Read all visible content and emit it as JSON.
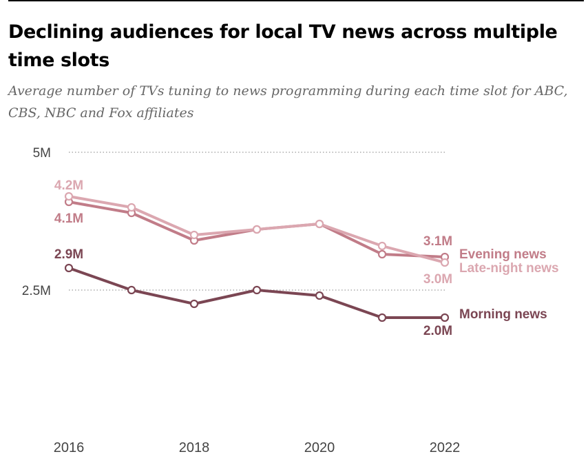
{
  "title": "Declining audiences for local TV news across multiple time slots",
  "subtitle": "Average number of TVs tuning to news programming during each time slot for ABC, CBS, NBC and Fox affiliates",
  "colors": {
    "evening": "#c17c88",
    "late_night": "#dba7b0",
    "morning": "#7b4653",
    "grid": "#999999",
    "axis_text": "#444444"
  },
  "chart_data": {
    "type": "line",
    "title": "Declining audiences for local TV news across multiple time slots",
    "subtitle": "Average number of TVs tuning to news programming during each time slot for ABC, CBS, NBC and Fox affiliates",
    "x": [
      2016,
      2017,
      2018,
      2019,
      2020,
      2021,
      2022
    ],
    "xticks": [
      "2016",
      "2018",
      "2020",
      "2022"
    ],
    "ylim": [
      0,
      5
    ],
    "yticks": [
      {
        "value": 5.0,
        "label": "5M"
      },
      {
        "value": 2.5,
        "label": "2.5M"
      }
    ],
    "grid": "dotted horizontal at labeled ticks",
    "series": [
      {
        "key": "evening",
        "name": "Evening news",
        "values": [
          4.1,
          3.9,
          3.4,
          3.6,
          3.7,
          3.15,
          3.1
        ],
        "start_label": "4.1M",
        "end_label": "3.1M"
      },
      {
        "key": "late_night",
        "name": "Late-night news",
        "values": [
          4.2,
          4.0,
          3.5,
          3.6,
          3.7,
          3.3,
          3.0
        ],
        "start_label": "4.2M",
        "end_label": "3.0M"
      },
      {
        "key": "morning",
        "name": "Morning news",
        "values": [
          2.9,
          2.5,
          2.25,
          2.5,
          2.4,
          2.0,
          2.0
        ],
        "start_label": "2.9M",
        "end_label": "2.0M"
      }
    ]
  }
}
